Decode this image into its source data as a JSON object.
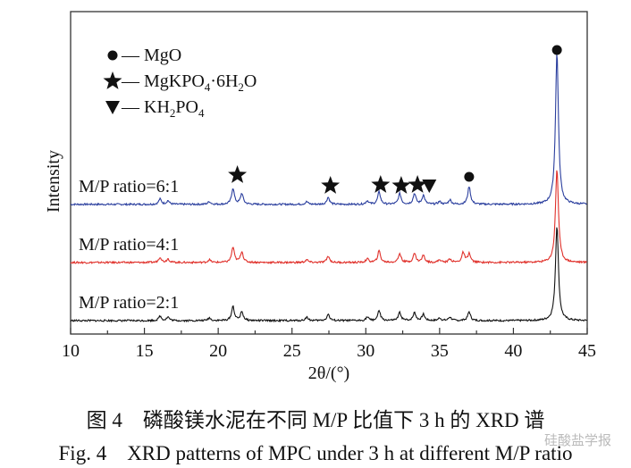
{
  "chart_data": {
    "type": "line",
    "xlabel": "2θ/(°)",
    "ylabel": "Intensity",
    "xlim": [
      10,
      45
    ],
    "xticks": [
      10,
      15,
      20,
      25,
      30,
      35,
      40,
      45
    ],
    "grid": false,
    "y_scale": "arbitrary units, patterns vertically offset",
    "legend": {
      "placement": "top-left",
      "entries": [
        {
          "symbol": "circle",
          "label": "— MgO"
        },
        {
          "symbol": "star",
          "label": "— MgKPO",
          "sub1": "4",
          "mid": "·6H",
          "sub2": "2",
          "tail": "O"
        },
        {
          "symbol": "triangle-down",
          "label": "— KH",
          "sub1": "2",
          "mid": "PO",
          "sub2": "4",
          "tail": ""
        }
      ]
    },
    "series": [
      {
        "name": "M/P ratio=6:1",
        "color": "#2b3f9e",
        "offset": 140,
        "peaks": [
          [
            16.06,
            6
          ],
          [
            16.6,
            4
          ],
          [
            19.4,
            3
          ],
          [
            21.0,
            18
          ],
          [
            21.6,
            12
          ],
          [
            26.0,
            3
          ],
          [
            27.45,
            8
          ],
          [
            30.1,
            4
          ],
          [
            30.9,
            14
          ],
          [
            32.3,
            12
          ],
          [
            33.3,
            12
          ],
          [
            33.9,
            10
          ],
          [
            35.0,
            3
          ],
          [
            35.7,
            5
          ],
          [
            37.0,
            20
          ],
          [
            42.95,
            170
          ]
        ]
      },
      {
        "name": "M/P ratio=4:1",
        "color": "#e0302a",
        "offset": 70,
        "peaks": [
          [
            16.06,
            6
          ],
          [
            16.6,
            4
          ],
          [
            19.4,
            3
          ],
          [
            21.0,
            17
          ],
          [
            21.6,
            12
          ],
          [
            26.0,
            3
          ],
          [
            27.45,
            7
          ],
          [
            30.1,
            4
          ],
          [
            30.9,
            13
          ],
          [
            32.3,
            10
          ],
          [
            33.3,
            10
          ],
          [
            33.9,
            8
          ],
          [
            35.0,
            3
          ],
          [
            35.7,
            4
          ],
          [
            36.6,
            11
          ],
          [
            37.0,
            10
          ],
          [
            42.95,
            105
          ]
        ]
      },
      {
        "name": "M/P ratio=2:1",
        "color": "#111111",
        "offset": 0,
        "peaks": [
          [
            16.06,
            5
          ],
          [
            16.6,
            4
          ],
          [
            19.4,
            3
          ],
          [
            21.0,
            16
          ],
          [
            21.6,
            10
          ],
          [
            26.0,
            4
          ],
          [
            27.45,
            7
          ],
          [
            30.1,
            4
          ],
          [
            30.9,
            11
          ],
          [
            32.3,
            9
          ],
          [
            33.3,
            9
          ],
          [
            33.9,
            7
          ],
          [
            35.0,
            3
          ],
          [
            35.7,
            4
          ],
          [
            37.0,
            10
          ],
          [
            42.95,
            107
          ]
        ]
      }
    ],
    "annotations": [
      {
        "symbol": "star",
        "x": 21.3
      },
      {
        "symbol": "star",
        "x": 27.6
      },
      {
        "symbol": "star",
        "x": 31.0
      },
      {
        "symbol": "star",
        "x": 32.4
      },
      {
        "symbol": "star",
        "x": 33.5
      },
      {
        "symbol": "triangle-down",
        "x": 34.3
      },
      {
        "symbol": "circle",
        "x": 37.0
      },
      {
        "symbol": "circle",
        "x": 42.95
      }
    ]
  },
  "caption": {
    "zh": "图 4　磷酸镁水泥在不同 M/P 比值下 3 h 的 XRD 谱",
    "en": "Fig. 4　XRD patterns of MPC under 3 h at different M/P ratio"
  },
  "watermark": "硅酸盐学报"
}
